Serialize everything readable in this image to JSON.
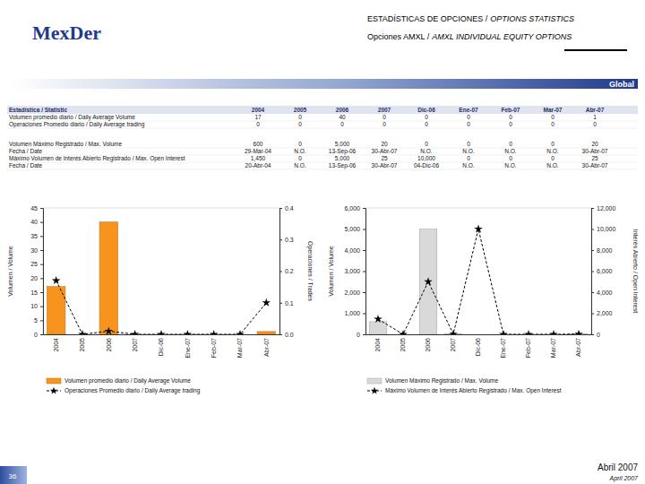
{
  "header": {
    "logo": "MexDer",
    "title_es": "ESTADÍSTICAS DE OPCIONES /",
    "title_en": "OPTIONS STATISTICS",
    "subtitle_es": "Opciones AMXL /",
    "subtitle_en": "AMXL INDIVIDUAL EQUITY OPTIONS",
    "section": "Global"
  },
  "table": {
    "header": [
      "Estadística / Statistic",
      "2004",
      "2005",
      "2006",
      "2007",
      "Dic-06",
      "Ene-07",
      "Feb-07",
      "Mar-07",
      "Abr-07"
    ],
    "rows": [
      {
        "label": "Volumen promedio diario / Daily Average Volume",
        "cells": [
          "17",
          "0",
          "40",
          "0",
          "0",
          "0",
          "0",
          "0",
          "1"
        ]
      },
      {
        "label": "Operaciones Promedio diario / Daily Average trading",
        "cells": [
          "0",
          "0",
          "0",
          "0",
          "0",
          "0",
          "0",
          "0",
          "0"
        ]
      },
      {
        "label": "Volumen Máximo Registrado / Max. Volume",
        "cells": [
          "600",
          "0",
          "5,000",
          "20",
          "0",
          "0",
          "0",
          "0",
          "20"
        ]
      },
      {
        "label": "Fecha / Date",
        "cells": [
          "29-Mar-04",
          "N.O.",
          "13-Sep-06",
          "30-Abr-07",
          "N.O.",
          "N.O.",
          "N.O.",
          "N.O.",
          "30-Abr-07"
        ]
      },
      {
        "label": "Máximo Volumen de Interés Abierto Registrado / Max. Open Interest",
        "cells": [
          "1,450",
          "0",
          "5,000",
          "25",
          "10,000",
          "0",
          "0",
          "0",
          "25"
        ]
      },
      {
        "label": "Fecha / Date",
        "cells": [
          "20-Abr-04",
          "N.O.",
          "13-Sep-06",
          "30-Abr-07",
          "04-Dic-06",
          "N.O.",
          "N.O.",
          "N.O.",
          "30-Abr-07"
        ]
      }
    ]
  },
  "chart_data": [
    {
      "type": "bar",
      "categories": [
        "2004",
        "2005",
        "2006",
        "2007",
        "Dic-06",
        "Ene-07",
        "Feb-07",
        "Mar-07",
        "Abr-07"
      ],
      "series": [
        {
          "name": "Volumen promedio diario / Daily Average Volume",
          "type": "bar",
          "color": "#f7941d",
          "values": [
            17,
            0,
            40,
            0,
            0,
            0,
            0,
            0,
            1
          ]
        },
        {
          "name": "Operaciones Promedio diario / Daily Average trading",
          "type": "line",
          "axis": "y2",
          "color": "#000000",
          "marker": "star",
          "line_style": "dashed",
          "values": [
            0.17,
            0,
            0.01,
            0,
            0,
            0,
            0,
            0,
            0.1
          ]
        }
      ],
      "y_label": "Volumen / Volume",
      "y2_label": "Operaciones / Trades",
      "ylim": [
        0,
        45
      ],
      "yticks": [
        0,
        5,
        10,
        15,
        20,
        25,
        30,
        35,
        40,
        45
      ],
      "y2lim": [
        0,
        0.4
      ],
      "y2ticks": [
        {
          "value": 0,
          "label": "0.0"
        },
        0.1,
        0.2,
        0.3,
        0.4
      ],
      "legend": "bottom"
    },
    {
      "type": "bar",
      "categories": [
        "2004",
        "2005",
        "2006",
        "2007",
        "Dic-06",
        "Ene-07",
        "Feb-07",
        "Mar-07",
        "Abr-07"
      ],
      "series": [
        {
          "name": "Volumen Máximo Registrado / Max. Volume",
          "type": "bar",
          "color": "#d9d9d9",
          "values": [
            600,
            0,
            5000,
            20,
            0,
            0,
            0,
            0,
            20
          ]
        },
        {
          "name": "Máximo Volumen de Interés Abierto Registrado / Max. Open Interest",
          "type": "line",
          "axis": "y2",
          "color": "#000000",
          "marker": "star",
          "line_style": "dashed",
          "values": [
            1450,
            0,
            5000,
            25,
            10000,
            0,
            0,
            0,
            25
          ]
        }
      ],
      "y_label": "Volumen / Volume",
      "y2_label": "Interés Abierto / Open Interest",
      "ylim": [
        0,
        6000
      ],
      "yticks": [
        0,
        {
          "value": 1000,
          "label": "1,000"
        },
        {
          "value": 2000,
          "label": "2,000"
        },
        {
          "value": 3000,
          "label": "3,000"
        },
        {
          "value": 4000,
          "label": "4,000"
        },
        {
          "value": 5000,
          "label": "5,000"
        },
        {
          "value": 6000,
          "label": "6,000"
        }
      ],
      "y2lim": [
        0,
        12000
      ],
      "y2ticks": [
        0,
        {
          "value": 2000,
          "label": "2,000"
        },
        {
          "value": 4000,
          "label": "4,000"
        },
        {
          "value": 6000,
          "label": "6,000"
        },
        {
          "value": 8000,
          "label": "8,000"
        },
        {
          "value": 10000,
          "label": "10,000"
        },
        {
          "value": 12000,
          "label": "12,000"
        }
      ],
      "legend": "bottom"
    }
  ],
  "footer": {
    "page": "36",
    "date_es": "Abril 2007",
    "date_en": "April 2007"
  }
}
